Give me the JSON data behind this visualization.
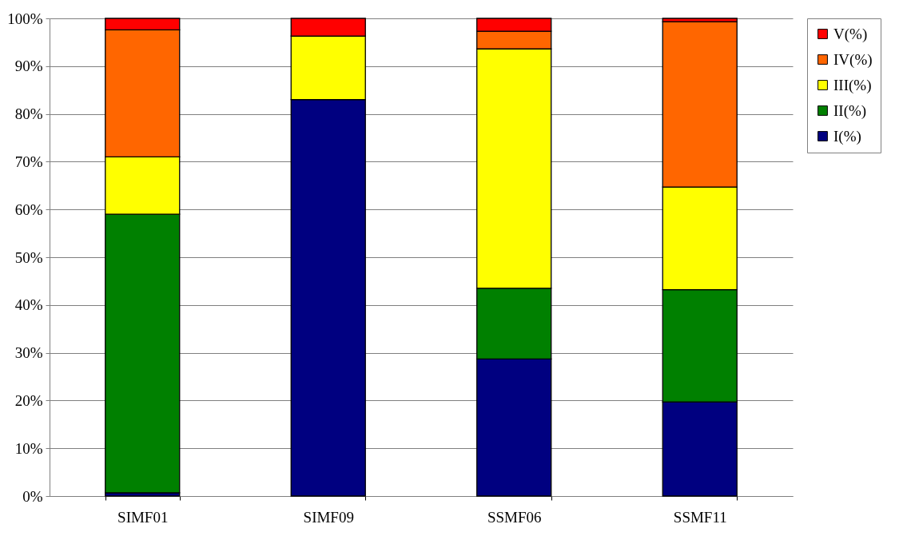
{
  "chart_data": {
    "type": "bar",
    "stacked": true,
    "categories": [
      "SIMF01",
      "SIMF09",
      "SSMF06",
      "SSMF11"
    ],
    "series": [
      {
        "name": "I(%)",
        "color": "#000080",
        "values": [
          0.7,
          83,
          28.7,
          19.7
        ]
      },
      {
        "name": "II(%)",
        "color": "#008000",
        "values": [
          58.3,
          0,
          14.8,
          23.5
        ]
      },
      {
        "name": "III(%)",
        "color": "#ffff00",
        "values": [
          12,
          13.3,
          50.1,
          21.5
        ]
      },
      {
        "name": "IV(%)",
        "color": "#ff6600",
        "values": [
          26.6,
          0,
          3.7,
          34.6
        ]
      },
      {
        "name": "V(%)",
        "color": "#ff0000",
        "values": [
          2.4,
          3.7,
          2.7,
          0.7
        ]
      }
    ],
    "ylim": [
      0,
      100
    ],
    "yticks": [
      {
        "value": 0,
        "label": "0%"
      },
      {
        "value": 10,
        "label": "10%"
      },
      {
        "value": 20,
        "label": "20%"
      },
      {
        "value": 30,
        "label": "30%"
      },
      {
        "value": 40,
        "label": "40%"
      },
      {
        "value": 50,
        "label": "50%"
      },
      {
        "value": 60,
        "label": "60%"
      },
      {
        "value": 70,
        "label": "70%"
      },
      {
        "value": 80,
        "label": "80%"
      },
      {
        "value": 90,
        "label": "90%"
      },
      {
        "value": 100,
        "label": "100%"
      }
    ],
    "grid": "y",
    "legend": "right"
  }
}
